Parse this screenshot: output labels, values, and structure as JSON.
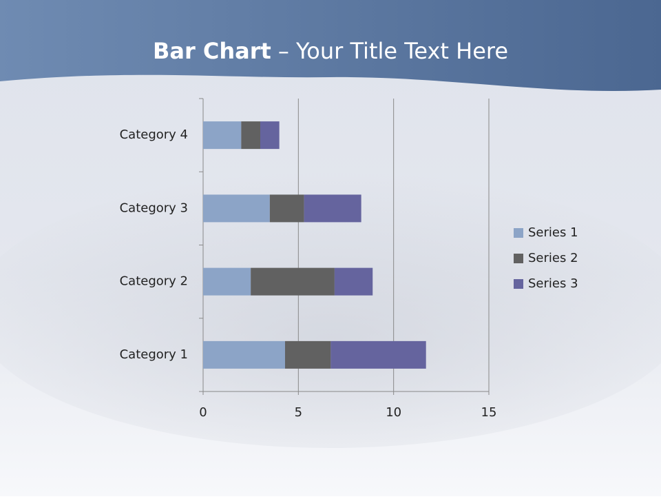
{
  "slide": {
    "title_bold": "Bar Chart",
    "title_rest": "– Your Title Text Here"
  },
  "chart_data": {
    "type": "stacked-bar-horizontal",
    "categories": [
      "Category 1",
      "Category 2",
      "Category 3",
      "Category 4"
    ],
    "series": [
      {
        "name": "Series 1",
        "color": "#8ca4c7",
        "values": [
          4.3,
          2.5,
          3.5,
          2
        ]
      },
      {
        "name": "Series 2",
        "color": "#616161",
        "values": [
          2.4,
          4.4,
          1.8,
          1
        ]
      },
      {
        "name": "Series 3",
        "color": "#65649e",
        "values": [
          5,
          2,
          3,
          1
        ]
      }
    ],
    "xlim": [
      0,
      15
    ],
    "xticks": [
      0,
      5,
      10,
      15
    ],
    "grid": true,
    "legend": "right"
  }
}
